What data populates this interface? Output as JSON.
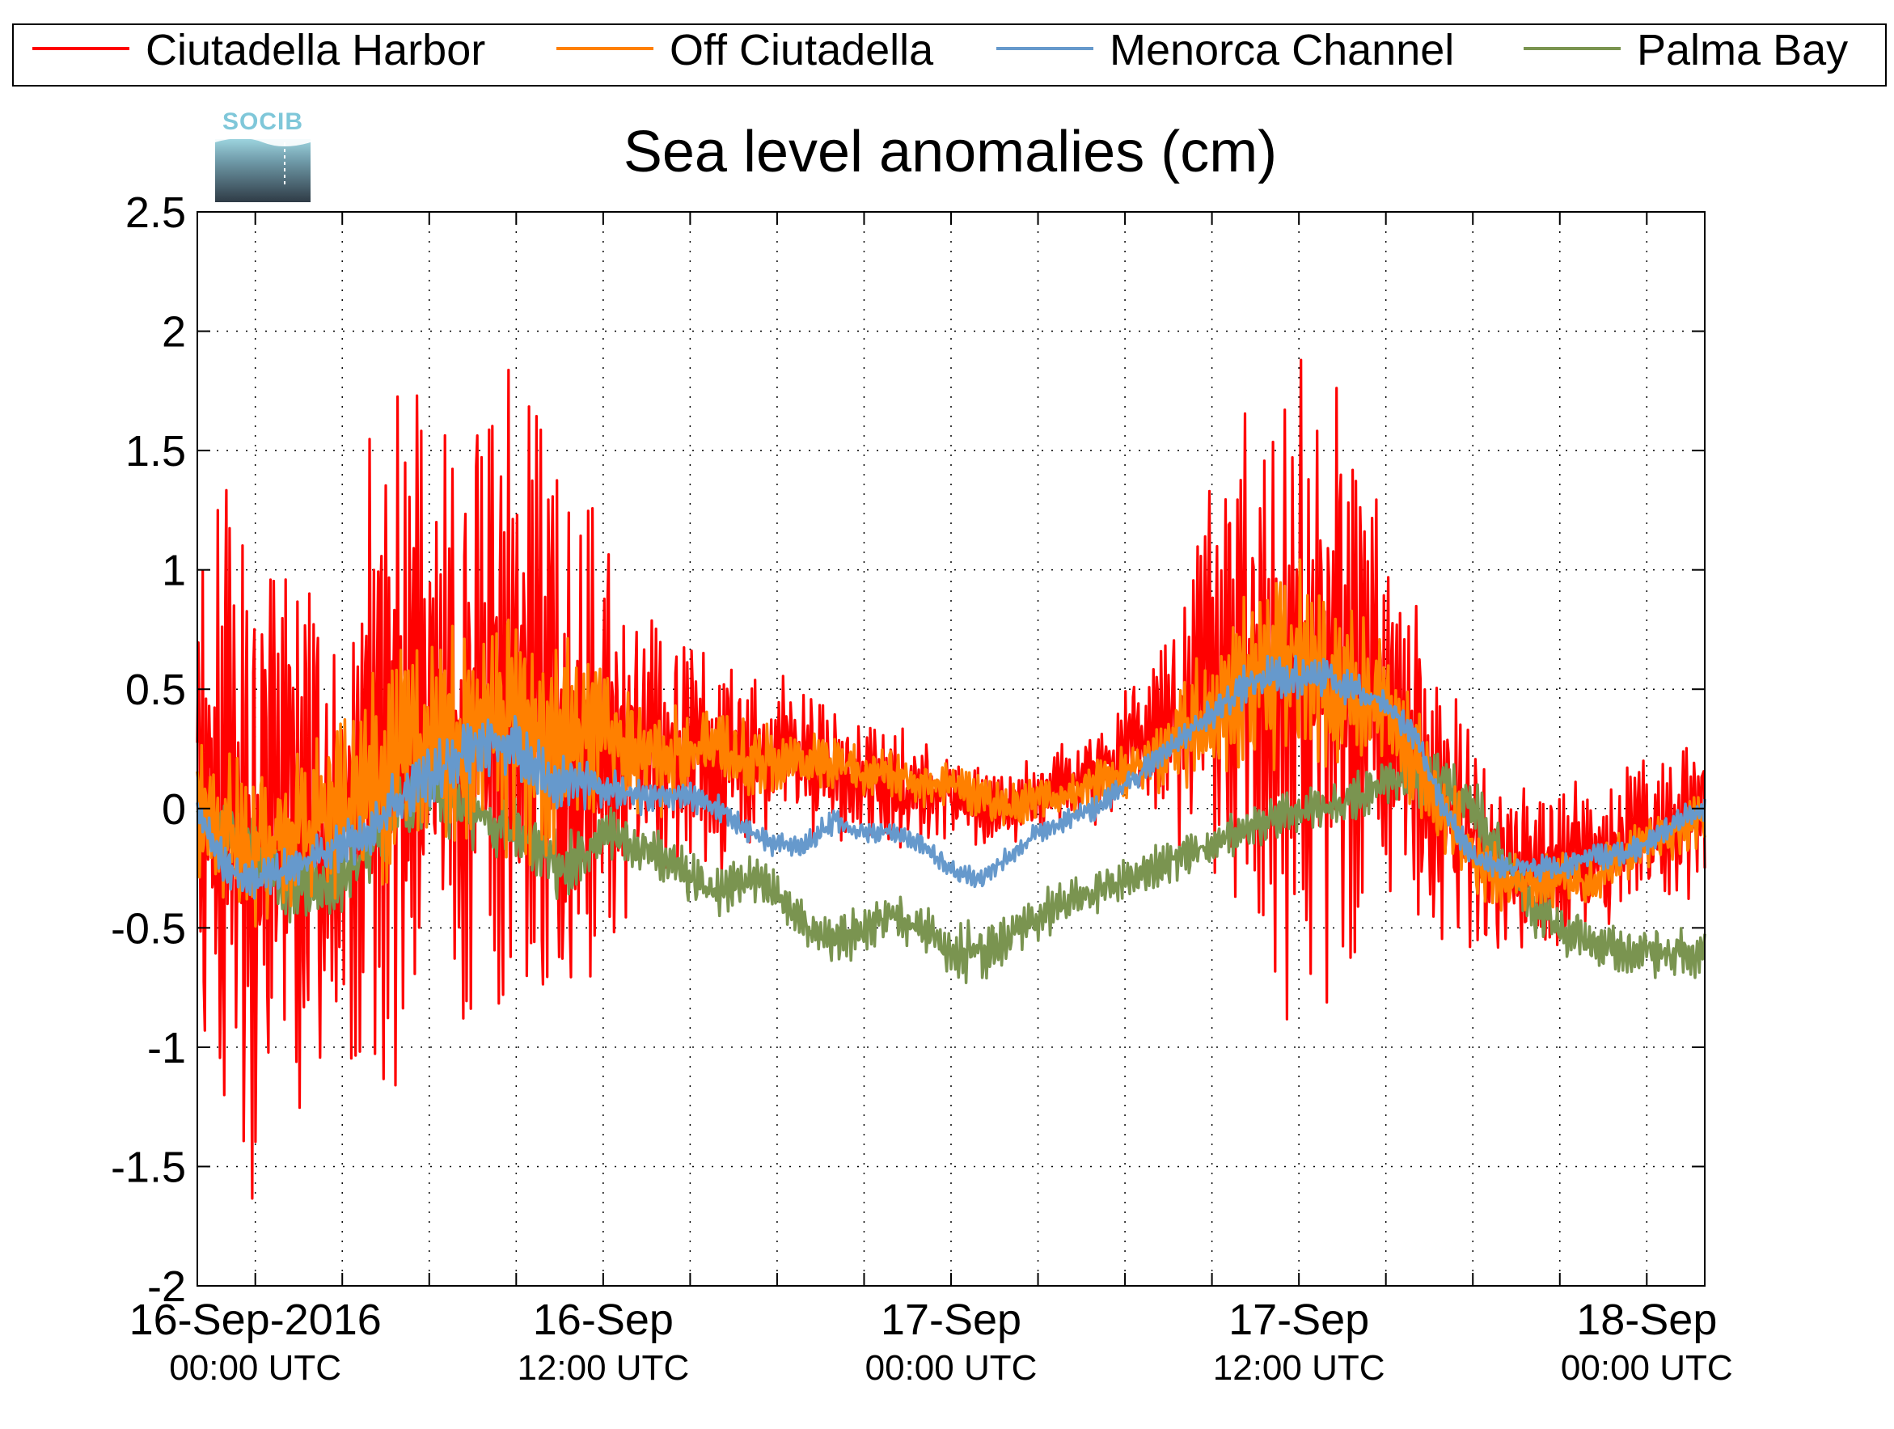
{
  "chart_data": {
    "type": "line",
    "title": "Sea level anomalies (cm)",
    "logo_text": "SOCIB",
    "xlabel": "",
    "ylabel": "",
    "ylim": [
      -2,
      2.5
    ],
    "y_ticks": [
      -2,
      -1.5,
      -1,
      -0.5,
      0,
      0.5,
      1,
      1.5,
      2,
      2.5
    ],
    "y_tick_labels": [
      "-2",
      "-1.5",
      "-1",
      "-0.5",
      "0",
      "0.5",
      "1",
      "1.5",
      "2",
      "2.5"
    ],
    "xlim": [
      "2016-09-15T22:00",
      "2016-09-18T02:00"
    ],
    "x_ticks": [
      "2016-09-16T00:00",
      "2016-09-16T03:00",
      "2016-09-16T06:00",
      "2016-09-16T09:00",
      "2016-09-16T12:00",
      "2016-09-16T15:00",
      "2016-09-16T18:00",
      "2016-09-16T21:00",
      "2016-09-17T00:00",
      "2016-09-17T03:00",
      "2016-09-17T06:00",
      "2016-09-17T09:00",
      "2016-09-17T12:00",
      "2016-09-17T15:00",
      "2016-09-17T18:00",
      "2016-09-17T21:00",
      "2016-09-18T00:00"
    ],
    "x_tick_labels": [
      {
        "x": "2016-09-16T00:00",
        "line1": "16-Sep-2016",
        "line2": "00:00 UTC"
      },
      {
        "x": "2016-09-16T12:00",
        "line1": "16-Sep",
        "line2": "12:00 UTC"
      },
      {
        "x": "2016-09-17T00:00",
        "line1": "17-Sep",
        "line2": "00:00 UTC"
      },
      {
        "x": "2016-09-17T12:00",
        "line1": "17-Sep",
        "line2": "12:00 UTC"
      },
      {
        "x": "2016-09-18T00:00",
        "line1": "18-Sep",
        "line2": "00:00 UTC"
      }
    ],
    "grid": true,
    "legend_position": "top",
    "series": [
      {
        "name": "Ciutadella Harbor",
        "color": "#ff0000",
        "x": [
          "2016-09-15T22:00",
          "2016-09-15T23:00",
          "2016-09-16T00:00",
          "2016-09-16T01:00",
          "2016-09-16T02:00",
          "2016-09-16T03:00",
          "2016-09-16T04:00",
          "2016-09-16T05:00",
          "2016-09-16T06:00",
          "2016-09-16T07:00",
          "2016-09-16T08:00",
          "2016-09-16T09:00",
          "2016-09-16T10:00",
          "2016-09-16T11:00",
          "2016-09-16T12:00",
          "2016-09-16T13:00",
          "2016-09-16T14:00",
          "2016-09-16T15:00",
          "2016-09-16T16:00",
          "2016-09-16T17:00",
          "2016-09-16T18:00",
          "2016-09-16T19:00",
          "2016-09-16T20:00",
          "2016-09-16T21:00",
          "2016-09-16T22:00",
          "2016-09-16T23:00",
          "2016-09-17T00:00",
          "2016-09-17T01:00",
          "2016-09-17T02:00",
          "2016-09-17T03:00",
          "2016-09-17T04:00",
          "2016-09-17T05:00",
          "2016-09-17T06:00",
          "2016-09-17T07:00",
          "2016-09-17T08:00",
          "2016-09-17T09:00",
          "2016-09-17T10:00",
          "2016-09-17T11:00",
          "2016-09-17T12:00",
          "2016-09-17T13:00",
          "2016-09-17T14:00",
          "2016-09-17T15:00",
          "2016-09-17T16:00",
          "2016-09-17T17:00",
          "2016-09-17T18:00",
          "2016-09-17T19:00",
          "2016-09-17T20:00",
          "2016-09-17T21:00",
          "2016-09-17T22:00",
          "2016-09-17T23:00",
          "2016-09-18T00:00",
          "2016-09-18T01:00",
          "2016-09-18T02:00"
        ],
        "y": [
          0.0,
          0.1,
          -0.2,
          0.0,
          -0.1,
          0.1,
          0.2,
          0.3,
          0.4,
          0.3,
          0.5,
          0.4,
          0.3,
          0.2,
          0.3,
          0.25,
          0.2,
          0.2,
          0.15,
          0.2,
          0.25,
          0.2,
          0.15,
          0.1,
          0.1,
          0.05,
          0.05,
          0.0,
          0.0,
          0.05,
          0.1,
          0.15,
          0.25,
          0.3,
          0.4,
          0.5,
          0.6,
          0.6,
          0.55,
          0.45,
          0.4,
          0.3,
          0.15,
          0.0,
          -0.15,
          -0.2,
          -0.25,
          -0.25,
          -0.2,
          -0.15,
          -0.1,
          -0.05,
          0.0
        ],
        "envelope": [
          1.0,
          1.2,
          1.4,
          1.2,
          1.0,
          1.0,
          1.2,
          1.3,
          1.1,
          1.1,
          1.2,
          1.3,
          1.2,
          1.0,
          0.8,
          0.6,
          0.5,
          0.45,
          0.4,
          0.35,
          0.3,
          0.3,
          0.25,
          0.25,
          0.25,
          0.2,
          0.2,
          0.15,
          0.15,
          0.15,
          0.15,
          0.2,
          0.25,
          0.3,
          0.5,
          0.8,
          1.0,
          1.2,
          1.3,
          1.2,
          1.0,
          0.8,
          0.6,
          0.5,
          0.4,
          0.35,
          0.3,
          0.3,
          0.3,
          0.3,
          0.3,
          0.3,
          0.3
        ]
      },
      {
        "name": "Off Ciutadella",
        "color": "#ff8000",
        "x": [
          "2016-09-15T22:00",
          "2016-09-15T23:00",
          "2016-09-16T00:00",
          "2016-09-16T01:00",
          "2016-09-16T02:00",
          "2016-09-16T03:00",
          "2016-09-16T04:00",
          "2016-09-16T05:00",
          "2016-09-16T06:00",
          "2016-09-16T07:00",
          "2016-09-16T08:00",
          "2016-09-16T09:00",
          "2016-09-16T10:00",
          "2016-09-16T11:00",
          "2016-09-16T12:00",
          "2016-09-16T13:00",
          "2016-09-16T14:00",
          "2016-09-16T15:00",
          "2016-09-16T16:00",
          "2016-09-16T17:00",
          "2016-09-16T18:00",
          "2016-09-16T19:00",
          "2016-09-16T20:00",
          "2016-09-16T21:00",
          "2016-09-16T22:00",
          "2016-09-16T23:00",
          "2016-09-17T00:00",
          "2016-09-17T01:00",
          "2016-09-17T02:00",
          "2016-09-17T03:00",
          "2016-09-17T04:00",
          "2016-09-17T05:00",
          "2016-09-17T06:00",
          "2016-09-17T07:00",
          "2016-09-17T08:00",
          "2016-09-17T09:00",
          "2016-09-17T10:00",
          "2016-09-17T11:00",
          "2016-09-17T12:00",
          "2016-09-17T13:00",
          "2016-09-17T14:00",
          "2016-09-17T15:00",
          "2016-09-17T16:00",
          "2016-09-17T17:00",
          "2016-09-17T18:00",
          "2016-09-17T19:00",
          "2016-09-17T20:00",
          "2016-09-17T21:00",
          "2016-09-17T22:00",
          "2016-09-17T23:00",
          "2016-09-18T00:00",
          "2016-09-18T01:00",
          "2016-09-18T02:00"
        ],
        "y": [
          0.0,
          -0.1,
          -0.15,
          -0.1,
          -0.05,
          0.0,
          0.1,
          0.2,
          0.3,
          0.3,
          0.35,
          0.35,
          0.3,
          0.3,
          0.3,
          0.25,
          0.2,
          0.25,
          0.25,
          0.2,
          0.2,
          0.2,
          0.2,
          0.15,
          0.15,
          0.1,
          0.1,
          0.05,
          0.0,
          0.05,
          0.05,
          0.1,
          0.15,
          0.2,
          0.3,
          0.4,
          0.55,
          0.6,
          0.6,
          0.55,
          0.5,
          0.4,
          0.2,
          0.0,
          -0.2,
          -0.3,
          -0.3,
          -0.3,
          -0.3,
          -0.2,
          -0.15,
          -0.1,
          -0.05
        ],
        "envelope": [
          0.25,
          0.3,
          0.3,
          0.3,
          0.3,
          0.35,
          0.4,
          0.45,
          0.4,
          0.4,
          0.45,
          0.5,
          0.45,
          0.35,
          0.3,
          0.25,
          0.2,
          0.15,
          0.15,
          0.15,
          0.12,
          0.1,
          0.1,
          0.1,
          0.1,
          0.08,
          0.08,
          0.08,
          0.08,
          0.08,
          0.08,
          0.1,
          0.1,
          0.12,
          0.2,
          0.3,
          0.35,
          0.4,
          0.4,
          0.35,
          0.3,
          0.25,
          0.2,
          0.15,
          0.15,
          0.12,
          0.1,
          0.1,
          0.1,
          0.1,
          0.1,
          0.1,
          0.1
        ]
      },
      {
        "name": "Menorca Channel",
        "color": "#6699cc",
        "x": [
          "2016-09-15T22:00",
          "2016-09-15T23:00",
          "2016-09-16T00:00",
          "2016-09-16T01:00",
          "2016-09-16T02:00",
          "2016-09-16T03:00",
          "2016-09-16T04:00",
          "2016-09-16T05:00",
          "2016-09-16T06:00",
          "2016-09-16T07:00",
          "2016-09-16T08:00",
          "2016-09-16T09:00",
          "2016-09-16T10:00",
          "2016-09-16T11:00",
          "2016-09-16T12:00",
          "2016-09-16T13:00",
          "2016-09-16T14:00",
          "2016-09-16T15:00",
          "2016-09-16T16:00",
          "2016-09-16T17:00",
          "2016-09-16T18:00",
          "2016-09-16T19:00",
          "2016-09-16T20:00",
          "2016-09-16T21:00",
          "2016-09-16T22:00",
          "2016-09-16T23:00",
          "2016-09-17T00:00",
          "2016-09-17T01:00",
          "2016-09-17T02:00",
          "2016-09-17T03:00",
          "2016-09-17T04:00",
          "2016-09-17T05:00",
          "2016-09-17T06:00",
          "2016-09-17T07:00",
          "2016-09-17T08:00",
          "2016-09-17T09:00",
          "2016-09-17T10:00",
          "2016-09-17T11:00",
          "2016-09-17T12:00",
          "2016-09-17T13:00",
          "2016-09-17T14:00",
          "2016-09-17T15:00",
          "2016-09-17T16:00",
          "2016-09-17T17:00",
          "2016-09-17T18:00",
          "2016-09-17T19:00",
          "2016-09-17T20:00",
          "2016-09-17T21:00",
          "2016-09-17T22:00",
          "2016-09-17T23:00",
          "2016-09-18T00:00",
          "2016-09-18T01:00",
          "2016-09-18T02:00"
        ],
        "y": [
          0.0,
          -0.25,
          -0.3,
          -0.25,
          -0.2,
          -0.15,
          -0.1,
          0.05,
          0.15,
          0.2,
          0.3,
          0.25,
          0.15,
          0.1,
          0.1,
          0.05,
          0.05,
          0.05,
          0.0,
          -0.1,
          -0.15,
          -0.15,
          -0.05,
          -0.1,
          -0.1,
          -0.15,
          -0.25,
          -0.3,
          -0.2,
          -0.1,
          -0.05,
          0.0,
          0.1,
          0.2,
          0.3,
          0.4,
          0.5,
          0.55,
          0.55,
          0.55,
          0.5,
          0.45,
          0.3,
          0.0,
          -0.2,
          -0.25,
          -0.25,
          -0.25,
          -0.2,
          -0.2,
          -0.15,
          -0.05,
          0.0
        ],
        "envelope": [
          0.05,
          0.08,
          0.08,
          0.08,
          0.08,
          0.1,
          0.1,
          0.12,
          0.12,
          0.12,
          0.15,
          0.15,
          0.12,
          0.1,
          0.08,
          0.07,
          0.06,
          0.06,
          0.05,
          0.05,
          0.05,
          0.05,
          0.05,
          0.04,
          0.04,
          0.04,
          0.04,
          0.04,
          0.04,
          0.04,
          0.04,
          0.05,
          0.05,
          0.05,
          0.06,
          0.07,
          0.08,
          0.08,
          0.08,
          0.08,
          0.07,
          0.06,
          0.06,
          0.05,
          0.05,
          0.05,
          0.05,
          0.05,
          0.05,
          0.05,
          0.05,
          0.05,
          0.05
        ]
      },
      {
        "name": "Palma Bay",
        "color": "#7a9450",
        "x": [
          "2016-09-15T22:00",
          "2016-09-15T23:00",
          "2016-09-16T00:00",
          "2016-09-16T01:00",
          "2016-09-16T02:00",
          "2016-09-16T03:00",
          "2016-09-16T04:00",
          "2016-09-16T05:00",
          "2016-09-16T06:00",
          "2016-09-16T07:00",
          "2016-09-16T08:00",
          "2016-09-16T09:00",
          "2016-09-16T10:00",
          "2016-09-16T11:00",
          "2016-09-16T12:00",
          "2016-09-16T13:00",
          "2016-09-16T14:00",
          "2016-09-16T15:00",
          "2016-09-16T16:00",
          "2016-09-16T17:00",
          "2016-09-16T18:00",
          "2016-09-16T19:00",
          "2016-09-16T20:00",
          "2016-09-16T21:00",
          "2016-09-16T22:00",
          "2016-09-16T23:00",
          "2016-09-17T00:00",
          "2016-09-17T01:00",
          "2016-09-17T02:00",
          "2016-09-17T03:00",
          "2016-09-17T04:00",
          "2016-09-17T05:00",
          "2016-09-17T06:00",
          "2016-09-17T07:00",
          "2016-09-17T08:00",
          "2016-09-17T09:00",
          "2016-09-17T10:00",
          "2016-09-17T11:00",
          "2016-09-17T12:00",
          "2016-09-17T13:00",
          "2016-09-17T14:00",
          "2016-09-17T15:00",
          "2016-09-17T16:00",
          "2016-09-17T17:00",
          "2016-09-17T18:00",
          "2016-09-17T19:00",
          "2016-09-17T20:00",
          "2016-09-17T21:00",
          "2016-09-17T22:00",
          "2016-09-17T23:00",
          "2016-09-18T00:00",
          "2016-09-18T01:00",
          "2016-09-18T02:00"
        ],
        "y": [
          0.0,
          -0.1,
          -0.2,
          -0.3,
          -0.35,
          -0.3,
          -0.15,
          0.0,
          0.1,
          0.0,
          -0.05,
          -0.1,
          -0.2,
          -0.25,
          -0.1,
          -0.15,
          -0.2,
          -0.3,
          -0.35,
          -0.3,
          -0.35,
          -0.5,
          -0.55,
          -0.5,
          -0.45,
          -0.5,
          -0.6,
          -0.6,
          -0.55,
          -0.45,
          -0.4,
          -0.35,
          -0.3,
          -0.25,
          -0.2,
          -0.15,
          -0.1,
          -0.05,
          0.0,
          0.0,
          0.05,
          0.1,
          0.1,
          0.1,
          0.0,
          -0.2,
          -0.4,
          -0.5,
          -0.55,
          -0.6,
          -0.6,
          -0.6,
          -0.6
        ],
        "envelope": [
          0.08,
          0.1,
          0.15,
          0.15,
          0.12,
          0.12,
          0.15,
          0.15,
          0.15,
          0.15,
          0.12,
          0.12,
          0.15,
          0.15,
          0.12,
          0.1,
          0.1,
          0.1,
          0.1,
          0.1,
          0.08,
          0.08,
          0.1,
          0.1,
          0.08,
          0.1,
          0.12,
          0.12,
          0.1,
          0.1,
          0.08,
          0.08,
          0.08,
          0.08,
          0.08,
          0.08,
          0.08,
          0.08,
          0.08,
          0.08,
          0.1,
          0.1,
          0.12,
          0.15,
          0.12,
          0.12,
          0.12,
          0.12,
          0.1,
          0.1,
          0.1,
          0.1,
          0.1
        ]
      }
    ]
  }
}
